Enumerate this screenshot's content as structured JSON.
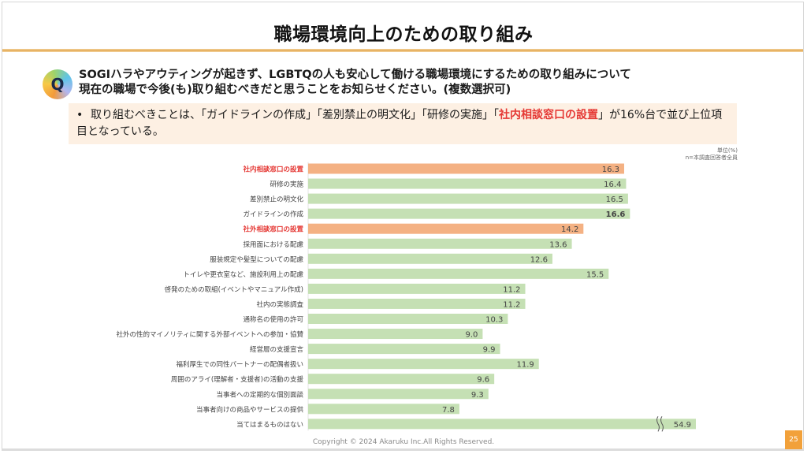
{
  "header": {
    "title": "職場環境向上のための取り組み"
  },
  "question": {
    "badge": "Q",
    "line1": "SOGIハラやアウティングが起きず、LGBTQの人も安心して働ける職場環境にするための取り組みについて",
    "line2": "現在の職場で今後(も)取り組むべきだと思うことをお知らせください。(複数選択可)"
  },
  "summary": {
    "bullet": "•",
    "text_before": "取り組むべきことは、「ガイドラインの作成」「差別禁止の明文化」「研修の実施」「",
    "highlight": "社内相談窓口の設置",
    "text_after": "」が16%台で並び上位項目となっている。"
  },
  "unit_note": {
    "unit": "単位(%)",
    "n": "n=本調査回答者全員"
  },
  "colors": {
    "highlight_bar": "#f4b183",
    "normal_bar": "#c5e0b4",
    "highlight_label": "#e53935",
    "accent": "#f2a13a"
  },
  "chart_data": {
    "type": "bar",
    "orientation": "horizontal",
    "title": "",
    "xlabel": "",
    "ylabel": "",
    "unit": "%",
    "xlim": [
      0,
      60
    ],
    "axis_break": {
      "category_index": 18,
      "note": "bar truncated with break mark"
    },
    "grid": false,
    "legend": "none",
    "categories": [
      "社内相談窓口の設置",
      "研修の実施",
      "差別禁止の明文化",
      "ガイドラインの作成",
      "社外相談窓口の設置",
      "採用面における配慮",
      "服装規定や髪型についての配慮",
      "トイレや更衣室など、施設利用上の配慮",
      "啓発のための取組(イベントやマニュアル作成)",
      "社内の実態調査",
      "通称名の使用の許可",
      "社外の性的マイノリティに関する外部イベントへの参加・協賛",
      "経営層の支援宣言",
      "福利厚生での同性パートナーの配偶者扱い",
      "周囲のアライ(理解者・支援者)の活動の支援",
      "当事者への定期的な個別面談",
      "当事者向けの商品やサービスの提供",
      "当てはまるものはない"
    ],
    "values": [
      16.3,
      16.4,
      16.5,
      16.6,
      14.2,
      13.6,
      12.6,
      15.5,
      11.2,
      11.2,
      10.3,
      9.0,
      9.9,
      11.9,
      9.6,
      9.3,
      7.8,
      54.9
    ],
    "value_labels": [
      "16.3",
      "16.4",
      "16.5",
      "16.6",
      "14.2",
      "13.6",
      "12.6",
      "15.5",
      "11.2",
      "11.2",
      "10.3",
      "9.0",
      "9.9",
      "11.9",
      "9.6",
      "9.3",
      "7.8",
      "54.9"
    ],
    "highlighted": [
      true,
      false,
      false,
      false,
      true,
      false,
      false,
      false,
      false,
      false,
      false,
      false,
      false,
      false,
      false,
      false,
      false,
      false
    ],
    "bold_value": [
      false,
      false,
      false,
      true,
      false,
      false,
      false,
      false,
      false,
      false,
      false,
      false,
      false,
      false,
      false,
      false,
      false,
      false
    ]
  },
  "footer": {
    "copyright": "Copyright © 2024 Akaruku Inc.All Rights Reserved.",
    "page": "25"
  }
}
